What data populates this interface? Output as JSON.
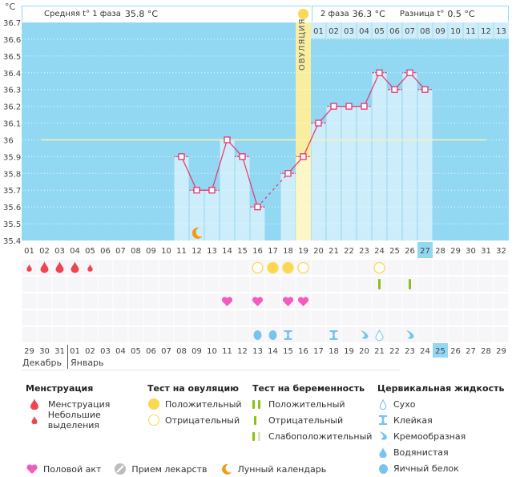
{
  "header": {
    "unit": "°C",
    "phase1_label": "Средняя t° 1 фаза",
    "phase1_value": "35.8 °C",
    "phase2_label": "2 фаза",
    "phase2_value": "36.3 °C",
    "diff_label": "Разница t°",
    "diff_value": "0.5 °C",
    "ovulation_label": "ОВУЛЯЦИЯ"
  },
  "colors": {
    "chart_bg": "#92d8f2",
    "bar_fill": "#cdedfb",
    "line": "#e8336b",
    "coverline": "#fdf3a8",
    "ovulation_band": "#f9eda0",
    "highlight_day": "#92d8f2",
    "menstruation": "#f0454e",
    "ovulation_test": "#fcd84e",
    "pregnancy_test": "#8dbf1a",
    "sex": "#f45bbf",
    "cervical": "#79c4ef",
    "moon": "#f39a12",
    "weekend": "#e8336b"
  },
  "chart_data": {
    "type": "line",
    "title": "",
    "xlabel": "",
    "ylabel": "°C",
    "ylim": [
      35.4,
      36.7
    ],
    "yticks": [
      "36.7",
      "36.6",
      "36.5",
      "36.4",
      "36.3",
      "36.2",
      "36.1",
      "36",
      "35.9",
      "35.8",
      "35.7",
      "35.6",
      "35.5",
      "35.4"
    ],
    "cycle_days": [
      "01",
      "02",
      "03",
      "04",
      "05",
      "06",
      "07",
      "08",
      "09",
      "10",
      "11",
      "12",
      "13",
      "14",
      "15",
      "16",
      "17",
      "18",
      "19",
      "20",
      "21",
      "22",
      "23",
      "24",
      "25",
      "26",
      "27",
      "28",
      "29",
      "30",
      "31",
      "32"
    ],
    "post_ovulation_days": [
      "01",
      "02",
      "03",
      "04",
      "05",
      "06",
      "07",
      "08",
      "09",
      "10",
      "11",
      "12",
      "13"
    ],
    "temperatures": [
      {
        "day": 11,
        "value": 35.9
      },
      {
        "day": 12,
        "value": 35.7
      },
      {
        "day": 13,
        "value": 35.7
      },
      {
        "day": 14,
        "value": 36.0
      },
      {
        "day": 15,
        "value": 35.9
      },
      {
        "day": 16,
        "value": 35.6
      },
      {
        "day": 18,
        "value": 35.8
      },
      {
        "day": 19,
        "value": 35.9
      },
      {
        "day": 20,
        "value": 36.1
      },
      {
        "day": 21,
        "value": 36.2
      },
      {
        "day": 22,
        "value": 36.2
      },
      {
        "day": 23,
        "value": 36.2
      },
      {
        "day": 24,
        "value": 36.4
      },
      {
        "day": 25,
        "value": 36.3
      },
      {
        "day": 26,
        "value": 36.4
      },
      {
        "day": 27,
        "value": 36.3
      }
    ],
    "dashed_gap": [
      16,
      18
    ],
    "coverline": 36.0,
    "ovulation_day": 19,
    "current_cycle_day": 27,
    "moon_day": 12
  },
  "markers": {
    "menstruation": [
      {
        "day": 1,
        "type": "small"
      },
      {
        "day": 2,
        "type": "full"
      },
      {
        "day": 3,
        "type": "full"
      },
      {
        "day": 4,
        "type": "full"
      },
      {
        "day": 5,
        "type": "small"
      }
    ],
    "ovulation_test": [
      {
        "day": 16,
        "result": "negative"
      },
      {
        "day": 17,
        "result": "positive"
      },
      {
        "day": 18,
        "result": "positive"
      },
      {
        "day": 19,
        "result": "negative"
      },
      {
        "day": 24,
        "result": "negative"
      }
    ],
    "pregnancy_test": [
      {
        "day": 24,
        "result": "negative"
      },
      {
        "day": 26,
        "result": "negative"
      }
    ],
    "sex": [
      14,
      16,
      18,
      19
    ],
    "cervical": [
      {
        "day": 16,
        "type": "egg_white"
      },
      {
        "day": 17,
        "type": "egg_white"
      },
      {
        "day": 18,
        "type": "sticky"
      },
      {
        "day": 21,
        "type": "sticky"
      },
      {
        "day": 23,
        "type": "creamy"
      },
      {
        "day": 24,
        "type": "dry"
      },
      {
        "day": 26,
        "type": "creamy"
      }
    ]
  },
  "calendar": {
    "dates": [
      {
        "d": "29",
        "weekend": false
      },
      {
        "d": "30",
        "weekend": false
      },
      {
        "d": "31",
        "weekend": false
      },
      {
        "d": "01",
        "weekend": false
      },
      {
        "d": "02",
        "weekend": true
      },
      {
        "d": "03",
        "weekend": true
      },
      {
        "d": "04",
        "weekend": false
      },
      {
        "d": "05",
        "weekend": false
      },
      {
        "d": "06",
        "weekend": false
      },
      {
        "d": "07",
        "weekend": false
      },
      {
        "d": "08",
        "weekend": false
      },
      {
        "d": "09",
        "weekend": true
      },
      {
        "d": "10",
        "weekend": true
      },
      {
        "d": "11",
        "weekend": false
      },
      {
        "d": "12",
        "weekend": false
      },
      {
        "d": "13",
        "weekend": false
      },
      {
        "d": "14",
        "weekend": false
      },
      {
        "d": "15",
        "weekend": false
      },
      {
        "d": "16",
        "weekend": true
      },
      {
        "d": "17",
        "weekend": true
      },
      {
        "d": "18",
        "weekend": false
      },
      {
        "d": "19",
        "weekend": false
      },
      {
        "d": "20",
        "weekend": false
      },
      {
        "d": "21",
        "weekend": false
      },
      {
        "d": "22",
        "weekend": false
      },
      {
        "d": "23",
        "weekend": true
      },
      {
        "d": "24",
        "weekend": false
      },
      {
        "d": "25",
        "weekend": false
      },
      {
        "d": "26",
        "weekend": false
      },
      {
        "d": "27",
        "weekend": false
      },
      {
        "d": "28",
        "weekend": false
      },
      {
        "d": "29",
        "weekend": false
      }
    ],
    "today_index": 27,
    "month_prev": "Декабрь",
    "month_next": "Январь"
  },
  "legend": {
    "menstruation": {
      "title": "Менструация",
      "items": [
        "Менструация",
        "Небольшие выделения"
      ]
    },
    "ovulation_test": {
      "title": "Тест на овуляцию",
      "items": [
        "Положительный",
        "Отрицательный"
      ]
    },
    "pregnancy_test": {
      "title": "Тест на беременность",
      "items": [
        "Положительный",
        "Отрицательный",
        "Слабоположительный"
      ]
    },
    "cervical": {
      "title": "Цервикальная жидкость",
      "items": [
        "Сухо",
        "Клейкая",
        "Кремообразная",
        "Водянистая",
        "Яичный белок"
      ]
    },
    "other": [
      "Половой акт",
      "Прием лекарств",
      "Лунный календарь"
    ]
  }
}
